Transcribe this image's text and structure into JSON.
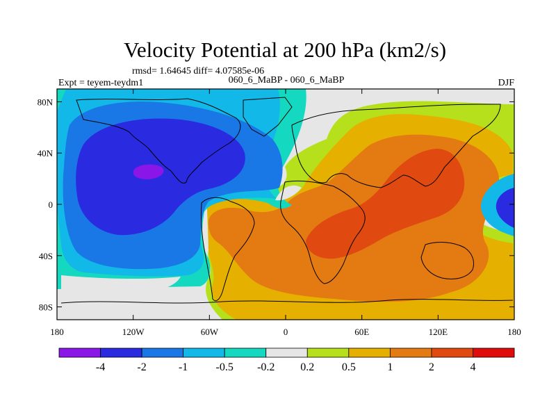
{
  "chart_data": {
    "type": "heatmap",
    "title": "Velocity Potential at 200 hPa (km2/s)",
    "stats_line": "rmsd= 1.64645 diff= 4.07585e-06",
    "experiment": "Expt = teyem-teydm1",
    "comparison": "060_6_MaBP - 060_6_MaBP",
    "season": "DJF",
    "x_range": [
      -180,
      180
    ],
    "y_range": [
      -90,
      90
    ],
    "x_ticks": [
      {
        "value": -180,
        "label": "180"
      },
      {
        "value": -120,
        "label": "120W"
      },
      {
        "value": -60,
        "label": "60W"
      },
      {
        "value": 0,
        "label": "0"
      },
      {
        "value": 60,
        "label": "60E"
      },
      {
        "value": 120,
        "label": "120E"
      },
      {
        "value": 180,
        "label": "180"
      }
    ],
    "y_ticks": [
      {
        "value": 80,
        "label": "80N"
      },
      {
        "value": 40,
        "label": "40N"
      },
      {
        "value": 0,
        "label": "0"
      },
      {
        "value": -40,
        "label": "40S"
      },
      {
        "value": -80,
        "label": "80S"
      }
    ],
    "colorbar": {
      "colors": [
        "#8a16e8",
        "#2a2ae0",
        "#1a78e6",
        "#12b8e8",
        "#14d8c0",
        "#e6e6e6",
        "#b6e01c",
        "#e6b000",
        "#e47a12",
        "#e04a10",
        "#e00c0c"
      ],
      "boundary_labels": [
        "-4",
        "-2",
        "-1",
        "-0.5",
        "-0.2",
        "0.2",
        "0.5",
        "1",
        "2",
        "4"
      ]
    },
    "field_description": "Negative velocity potential (blue/purple) over the eastern Pacific and western hemisphere with minimum below -4 near 120W 25N; positive values (orange/red) over Africa, the Indian Ocean and Maritime Continent with maximum between 2 and 4."
  }
}
